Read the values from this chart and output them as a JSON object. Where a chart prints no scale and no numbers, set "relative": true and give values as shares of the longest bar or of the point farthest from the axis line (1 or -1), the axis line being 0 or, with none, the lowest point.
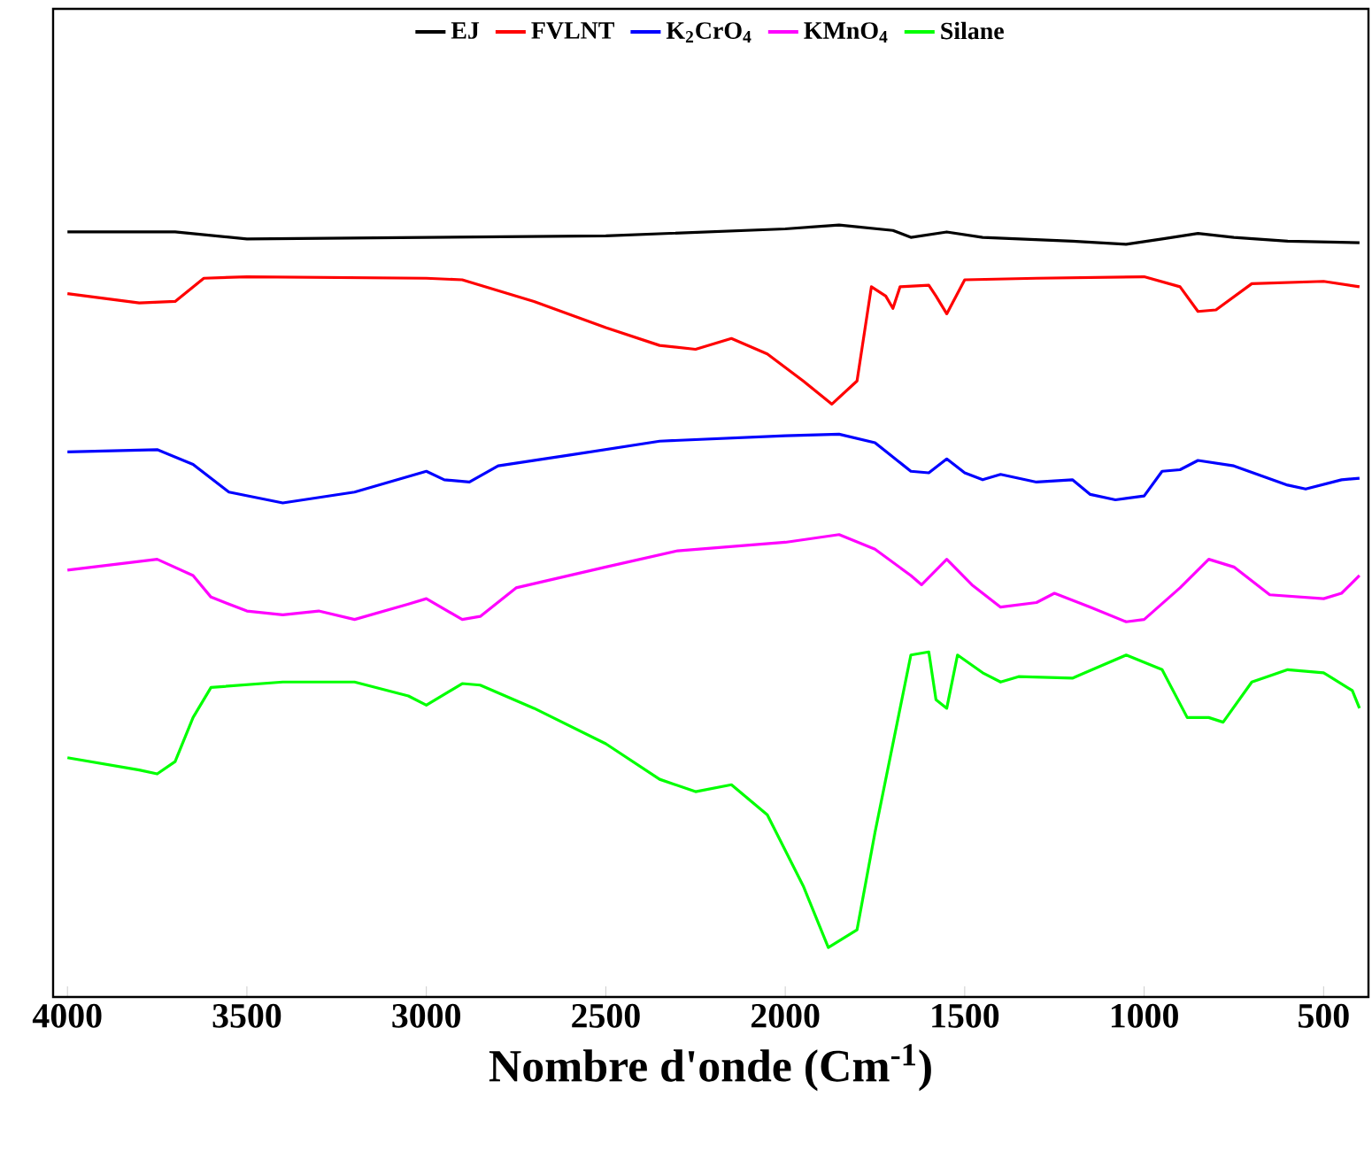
{
  "chart_data": {
    "type": "line",
    "relative": true,
    "xlabel": "Nombre d'onde (Cm$^{-1}$)",
    "xlim": [
      4040,
      375
    ],
    "xticks": [
      4000,
      3500,
      3000,
      2500,
      2000,
      1500,
      1000,
      500
    ],
    "legend": "top",
    "grid": false,
    "series": [
      {
        "name": "EJ",
        "color": "#000000",
        "x": [
          4000,
          3700,
          3500,
          3000,
          2500,
          2000,
          1850,
          1700,
          1650,
          1550,
          1450,
          1200,
          1050,
          950,
          850,
          750,
          600,
          400
        ],
        "values": [
          0.991,
          0.991,
          0.982,
          0.984,
          0.986,
          0.995,
          1.0,
          0.993,
          0.984,
          0.991,
          0.984,
          0.979,
          0.975,
          0.982,
          0.989,
          0.984,
          0.979,
          0.977
        ]
      },
      {
        "name": "FVLNT",
        "color": "#ff0000",
        "x": [
          4000,
          3800,
          3700,
          3620,
          3500,
          3000,
          2900,
          2700,
          2500,
          2350,
          2250,
          2150,
          2050,
          1950,
          1870,
          1800,
          1760,
          1720,
          1700,
          1680,
          1600,
          1580,
          1550,
          1500,
          1300,
          1000,
          900,
          850,
          800,
          700,
          500,
          400
        ],
        "values": [
          0.911,
          0.899,
          0.901,
          0.931,
          0.933,
          0.931,
          0.929,
          0.901,
          0.867,
          0.844,
          0.839,
          0.853,
          0.833,
          0.798,
          0.768,
          0.798,
          0.92,
          0.908,
          0.892,
          0.92,
          0.922,
          0.908,
          0.885,
          0.929,
          0.931,
          0.933,
          0.92,
          0.888,
          0.89,
          0.924,
          0.927,
          0.92
        ]
      },
      {
        "name": "K$_{2}$CrO$_{4}$",
        "color": "#0000ff",
        "x": [
          4000,
          3750,
          3650,
          3550,
          3400,
          3200,
          3000,
          2950,
          2880,
          2800,
          2600,
          2350,
          2000,
          1850,
          1750,
          1650,
          1600,
          1550,
          1500,
          1450,
          1400,
          1300,
          1200,
          1150,
          1080,
          1000,
          950,
          900,
          850,
          750,
          600,
          550,
          450,
          400
        ],
        "values": [
          0.706,
          0.709,
          0.69,
          0.654,
          0.64,
          0.654,
          0.681,
          0.67,
          0.667,
          0.688,
          0.702,
          0.72,
          0.727,
          0.729,
          0.718,
          0.681,
          0.679,
          0.697,
          0.679,
          0.67,
          0.677,
          0.667,
          0.67,
          0.651,
          0.644,
          0.649,
          0.681,
          0.683,
          0.695,
          0.688,
          0.663,
          0.658,
          0.67,
          0.672
        ]
      },
      {
        "name": "KMnO$_{4}$",
        "color": "#ff00ff",
        "x": [
          4000,
          3750,
          3650,
          3600,
          3500,
          3400,
          3300,
          3200,
          3050,
          3000,
          2900,
          2850,
          2750,
          2500,
          2300,
          2000,
          1850,
          1750,
          1650,
          1620,
          1550,
          1480,
          1400,
          1300,
          1250,
          1150,
          1050,
          1000,
          900,
          820,
          750,
          650,
          500,
          450,
          400
        ],
        "values": [
          0.553,
          0.567,
          0.546,
          0.518,
          0.5,
          0.495,
          0.5,
          0.489,
          0.509,
          0.516,
          0.489,
          0.493,
          0.53,
          0.557,
          0.578,
          0.589,
          0.599,
          0.58,
          0.546,
          0.534,
          0.567,
          0.534,
          0.505,
          0.511,
          0.523,
          0.505,
          0.486,
          0.489,
          0.53,
          0.567,
          0.557,
          0.521,
          0.516,
          0.523,
          0.546
        ]
      },
      {
        "name": "Silane",
        "color": "#00ff00",
        "x": [
          4000,
          3800,
          3750,
          3700,
          3650,
          3600,
          3400,
          3200,
          3050,
          3000,
          2900,
          2850,
          2700,
          2500,
          2350,
          2250,
          2150,
          2050,
          1950,
          1880,
          1800,
          1750,
          1700,
          1650,
          1600,
          1580,
          1550,
          1520,
          1450,
          1400,
          1350,
          1200,
          1050,
          950,
          880,
          820,
          780,
          700,
          600,
          500,
          420,
          400
        ],
        "values": [
          0.31,
          0.294,
          0.289,
          0.305,
          0.362,
          0.401,
          0.408,
          0.408,
          0.39,
          0.378,
          0.406,
          0.404,
          0.374,
          0.328,
          0.282,
          0.266,
          0.275,
          0.236,
          0.144,
          0.064,
          0.087,
          0.213,
          0.328,
          0.443,
          0.447,
          0.385,
          0.374,
          0.443,
          0.42,
          0.408,
          0.415,
          0.413,
          0.443,
          0.424,
          0.362,
          0.362,
          0.356,
          0.408,
          0.424,
          0.42,
          0.397,
          0.374
        ]
      }
    ]
  }
}
